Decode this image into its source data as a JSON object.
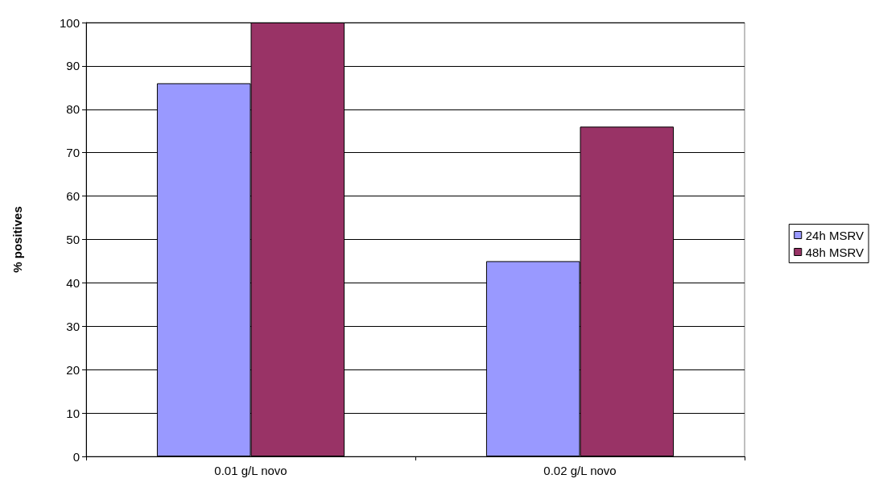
{
  "chart_data": {
    "type": "bar",
    "ylabel": "% positives",
    "categories": [
      "0.01 g/L novo",
      "0.02 g/L novo"
    ],
    "series": [
      {
        "name": "24h MSRV",
        "color": "#9999ff",
        "values": [
          86,
          45
        ]
      },
      {
        "name": "48h MSRV",
        "color": "#993366",
        "values": [
          100,
          76
        ]
      }
    ],
    "ylim": [
      0,
      100
    ],
    "yticks": [
      0,
      10,
      20,
      30,
      40,
      50,
      60,
      70,
      80,
      90,
      100
    ],
    "grid": "y",
    "legend": "right"
  }
}
